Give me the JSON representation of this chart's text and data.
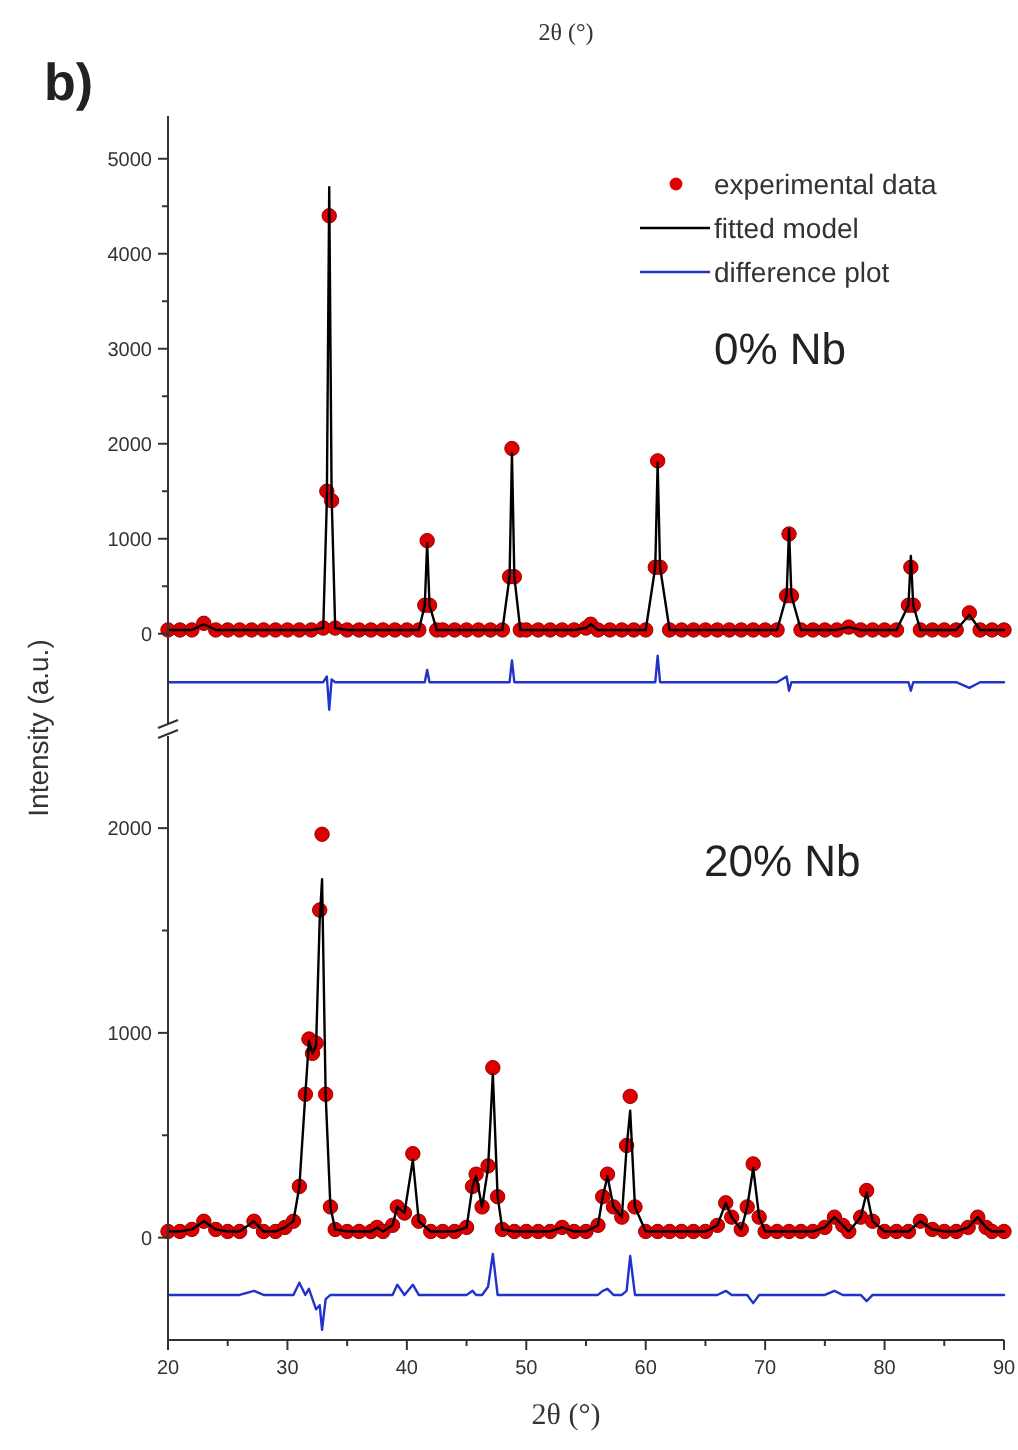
{
  "chart_data": [
    {
      "type": "line",
      "xlabel": "2θ (°)",
      "ylabel": "Intensity (a.u.)",
      "annotations": [
        "b)",
        "0% Nb"
      ],
      "legend": "top right",
      "tick_labels": "y",
      "xlim": [
        20,
        90
      ],
      "ylim": [
        -950,
        5450
      ],
      "yticks": [
        0,
        {
          "value": 500,
          "label": null
        },
        1000,
        {
          "value": 1500,
          "label": null
        },
        2000,
        {
          "value": 2500,
          "label": null
        },
        3000,
        {
          "value": 3500,
          "label": null
        },
        4000,
        {
          "value": 4500,
          "label": null
        },
        5000
      ],
      "x": [
        20,
        21,
        22,
        23,
        24,
        25,
        26,
        27,
        28,
        29,
        30,
        31,
        32,
        33,
        33.3,
        33.5,
        33.7,
        34,
        35,
        36,
        37,
        38,
        39,
        40,
        41,
        41.5,
        41.7,
        41.9,
        42.5,
        43,
        44,
        45,
        46,
        47,
        48,
        48.6,
        48.8,
        49,
        49.5,
        50,
        51,
        52,
        53,
        54,
        55,
        55.4,
        56,
        57,
        58,
        59,
        60,
        60.8,
        61,
        61.2,
        62,
        63,
        64,
        65,
        66,
        67,
        68,
        69,
        70,
        71,
        71.8,
        72,
        72.2,
        73,
        74,
        75,
        76,
        77,
        78,
        79,
        80,
        81,
        82,
        82.2,
        82.4,
        83,
        84,
        85,
        86,
        87.1,
        88,
        89,
        90
      ],
      "series": [
        {
          "name": "experimental data",
          "type": "scatter",
          "marker": "circle",
          "color": "#dd0000",
          "values": [
            40,
            40,
            40,
            110,
            40,
            40,
            40,
            40,
            40,
            40,
            40,
            40,
            40,
            60,
            1500,
            4400,
            1400,
            60,
            40,
            40,
            40,
            40,
            40,
            40,
            40,
            300,
            980,
            300,
            40,
            40,
            40,
            40,
            40,
            40,
            40,
            600,
            1950,
            600,
            40,
            40,
            40,
            40,
            40,
            40,
            60,
            100,
            40,
            40,
            40,
            40,
            40,
            700,
            1820,
            700,
            40,
            40,
            40,
            40,
            40,
            40,
            40,
            40,
            40,
            40,
            400,
            1050,
            400,
            40,
            40,
            40,
            40,
            70,
            40,
            40,
            40,
            40,
            300,
            700,
            300,
            40,
            40,
            40,
            40,
            220,
            40,
            40,
            40
          ]
        },
        {
          "name": "fitted model",
          "color": "#000000",
          "values": [
            40,
            40,
            40,
            100,
            40,
            40,
            40,
            40,
            40,
            40,
            40,
            40,
            40,
            60,
            1400,
            4700,
            1450,
            60,
            40,
            40,
            40,
            40,
            40,
            40,
            40,
            300,
            950,
            300,
            40,
            40,
            40,
            40,
            40,
            40,
            40,
            600,
            1900,
            600,
            40,
            40,
            40,
            40,
            40,
            40,
            60,
            100,
            40,
            40,
            40,
            40,
            40,
            700,
            1800,
            700,
            40,
            40,
            40,
            40,
            40,
            40,
            40,
            40,
            40,
            40,
            400,
            1100,
            400,
            40,
            40,
            40,
            40,
            70,
            40,
            40,
            40,
            40,
            300,
            820,
            300,
            40,
            40,
            40,
            40,
            200,
            40,
            40,
            40
          ]
        },
        {
          "name": "difference plot",
          "color": "#2233cc",
          "values": [
            -510,
            -510,
            -510,
            -510,
            -510,
            -510,
            -510,
            -510,
            -510,
            -510,
            -510,
            -510,
            -510,
            -510,
            -450,
            -800,
            -480,
            -510,
            -510,
            -510,
            -510,
            -510,
            -510,
            -510,
            -510,
            -510,
            -380,
            -510,
            -510,
            -510,
            -510,
            -510,
            -510,
            -510,
            -510,
            -510,
            -280,
            -510,
            -510,
            -510,
            -510,
            -510,
            -510,
            -510,
            -510,
            -510,
            -510,
            -510,
            -510,
            -510,
            -510,
            -510,
            -230,
            -510,
            -510,
            -510,
            -510,
            -510,
            -510,
            -510,
            -510,
            -510,
            -510,
            -510,
            -450,
            -600,
            -510,
            -510,
            -510,
            -510,
            -510,
            -510,
            -510,
            -510,
            -510,
            -510,
            -510,
            -600,
            -510,
            -510,
            -510,
            -510,
            -510,
            -570,
            -510,
            -510,
            -510
          ]
        }
      ]
    },
    {
      "type": "line",
      "xlabel": "2θ (°)",
      "annotations": [
        "20% Nb"
      ],
      "xlim": [
        20,
        90
      ],
      "ylim": [
        -500,
        2450
      ],
      "xticks": [
        20,
        {
          "value": 25,
          "label": null
        },
        30,
        {
          "value": 35,
          "label": null
        },
        40,
        {
          "value": 45,
          "label": null
        },
        50,
        {
          "value": 55,
          "label": null
        },
        60,
        {
          "value": 65,
          "label": null
        },
        70,
        {
          "value": 75,
          "label": null
        },
        80,
        {
          "value": 85,
          "label": null
        },
        90
      ],
      "yticks": [
        0,
        {
          "value": 500,
          "label": null
        },
        1000,
        {
          "value": 1500,
          "label": null
        },
        2000
      ],
      "x": [
        20,
        21,
        22,
        23,
        24,
        25,
        26,
        27.2,
        28,
        29,
        29.8,
        30.5,
        31,
        31.5,
        31.8,
        32.1,
        32.4,
        32.7,
        32.9,
        33.2,
        33.6,
        34,
        35,
        36,
        37,
        37.5,
        38,
        38.8,
        39.2,
        39.8,
        40.5,
        41,
        42,
        43,
        44,
        45,
        45.5,
        45.8,
        46.3,
        46.8,
        47.2,
        47.6,
        48,
        49,
        50,
        51,
        52,
        53,
        54,
        55,
        56,
        56.4,
        56.8,
        57.3,
        58,
        58.4,
        58.7,
        59.1,
        60,
        61,
        62,
        63,
        64,
        65,
        66,
        66.7,
        67.2,
        68,
        68.5,
        69,
        69.5,
        70,
        71,
        72,
        73,
        74,
        75,
        75.8,
        76.5,
        77,
        78,
        78.5,
        79,
        80,
        81,
        82,
        83,
        84,
        85,
        86,
        87,
        87.8,
        88.5,
        89,
        90
      ],
      "series": [
        {
          "type": "scatter",
          "marker": "circle",
          "color": "#dd0000",
          "values": [
            30,
            30,
            40,
            80,
            40,
            30,
            30,
            80,
            30,
            30,
            50,
            80,
            250,
            700,
            970,
            900,
            950,
            1600,
            1970,
            700,
            150,
            40,
            30,
            30,
            30,
            50,
            30,
            60,
            150,
            120,
            410,
            80,
            30,
            30,
            30,
            50,
            250,
            310,
            150,
            350,
            830,
            200,
            40,
            30,
            30,
            30,
            30,
            50,
            30,
            30,
            60,
            200,
            310,
            150,
            100,
            450,
            690,
            150,
            30,
            30,
            30,
            30,
            30,
            30,
            60,
            170,
            100,
            40,
            150,
            360,
            100,
            30,
            30,
            30,
            30,
            30,
            50,
            100,
            60,
            30,
            100,
            230,
            80,
            30,
            30,
            30,
            80,
            40,
            30,
            30,
            50,
            100,
            50,
            30,
            30
          ]
        },
        {
          "color": "#000000",
          "values": [
            30,
            30,
            40,
            80,
            40,
            30,
            30,
            80,
            30,
            30,
            50,
            80,
            250,
            700,
            960,
            900,
            940,
            1550,
            1750,
            700,
            150,
            40,
            30,
            30,
            30,
            50,
            30,
            60,
            150,
            120,
            380,
            80,
            30,
            30,
            30,
            50,
            250,
            300,
            150,
            340,
            800,
            200,
            40,
            30,
            30,
            30,
            30,
            50,
            30,
            30,
            60,
            200,
            300,
            150,
            100,
            440,
            620,
            150,
            30,
            30,
            30,
            30,
            30,
            30,
            60,
            170,
            100,
            40,
            150,
            340,
            100,
            30,
            30,
            30,
            30,
            30,
            50,
            100,
            60,
            30,
            100,
            220,
            80,
            30,
            30,
            30,
            80,
            40,
            30,
            30,
            50,
            100,
            50,
            30,
            30
          ]
        },
        {
          "color": "#2233cc",
          "values": [
            -280,
            -280,
            -280,
            -280,
            -280,
            -280,
            -280,
            -260,
            -280,
            -280,
            -280,
            -280,
            -220,
            -280,
            -250,
            -300,
            -350,
            -330,
            -450,
            -300,
            -280,
            -280,
            -280,
            -280,
            -280,
            -280,
            -280,
            -280,
            -230,
            -280,
            -230,
            -280,
            -280,
            -280,
            -280,
            -280,
            -260,
            -280,
            -280,
            -240,
            -80,
            -280,
            -280,
            -280,
            -280,
            -280,
            -280,
            -280,
            -280,
            -280,
            -280,
            -260,
            -250,
            -280,
            -280,
            -260,
            -90,
            -280,
            -280,
            -280,
            -280,
            -280,
            -280,
            -280,
            -280,
            -260,
            -280,
            -280,
            -280,
            -320,
            -280,
            -280,
            -280,
            -280,
            -280,
            -280,
            -280,
            -260,
            -280,
            -280,
            -280,
            -310,
            -280,
            -280,
            -280,
            -280,
            -280,
            -280,
            -280,
            -280,
            -280,
            -280,
            -280,
            -280,
            -280
          ]
        }
      ]
    }
  ]
}
